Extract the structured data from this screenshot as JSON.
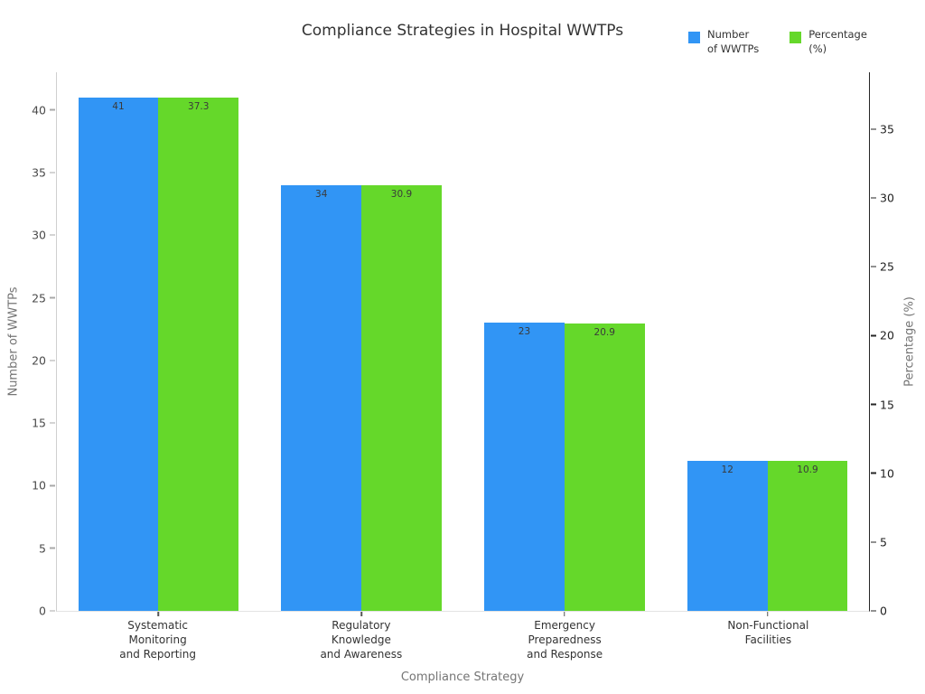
{
  "title": "Compliance Strategies in Hospital WWTPs",
  "legend": [
    {
      "label": "Number\nof WWTPs",
      "color": "#3195F5"
    },
    {
      "label": "Percentage\n(%)",
      "color": "#65D82A"
    }
  ],
  "axes": {
    "xlabel": "Compliance Strategy",
    "ylabel_left": "Number of WWTPs",
    "ylabel_right": "Percentage (%)"
  },
  "chart_data": {
    "type": "bar",
    "title": "Compliance Strategies in Hospital WWTPs",
    "xlabel": "Compliance Strategy",
    "ylabel": "Number of WWTPs",
    "ylabel_secondary": "Percentage (%)",
    "grid": false,
    "legend_position": "top-right",
    "categories": [
      "Systematic\nMonitoring\nand Reporting",
      "Regulatory\nKnowledge\nand Awareness",
      "Emergency\nPreparedness\nand Response",
      "Non-Functional\nFacilities"
    ],
    "series": [
      {
        "name": "Number of WWTPs",
        "axis": "left",
        "color": "#3195F5",
        "values": [
          41,
          34,
          23,
          12
        ],
        "labels": [
          "41",
          "34",
          "23",
          "12"
        ]
      },
      {
        "name": "Percentage (%)",
        "axis": "right",
        "color": "#65D82A",
        "values": [
          37.3,
          30.9,
          20.9,
          10.9
        ],
        "labels": [
          "37.3",
          "30.9",
          "20.9",
          "10.9"
        ]
      }
    ],
    "left_axis": {
      "ticks": [
        0,
        5,
        10,
        15,
        20,
        25,
        30,
        35,
        40
      ],
      "min": 0,
      "max": 43.0
    },
    "right_axis": {
      "ticks": [
        0,
        5,
        10,
        15,
        20,
        25,
        30,
        35
      ],
      "min": 0,
      "max": 39.13
    }
  }
}
